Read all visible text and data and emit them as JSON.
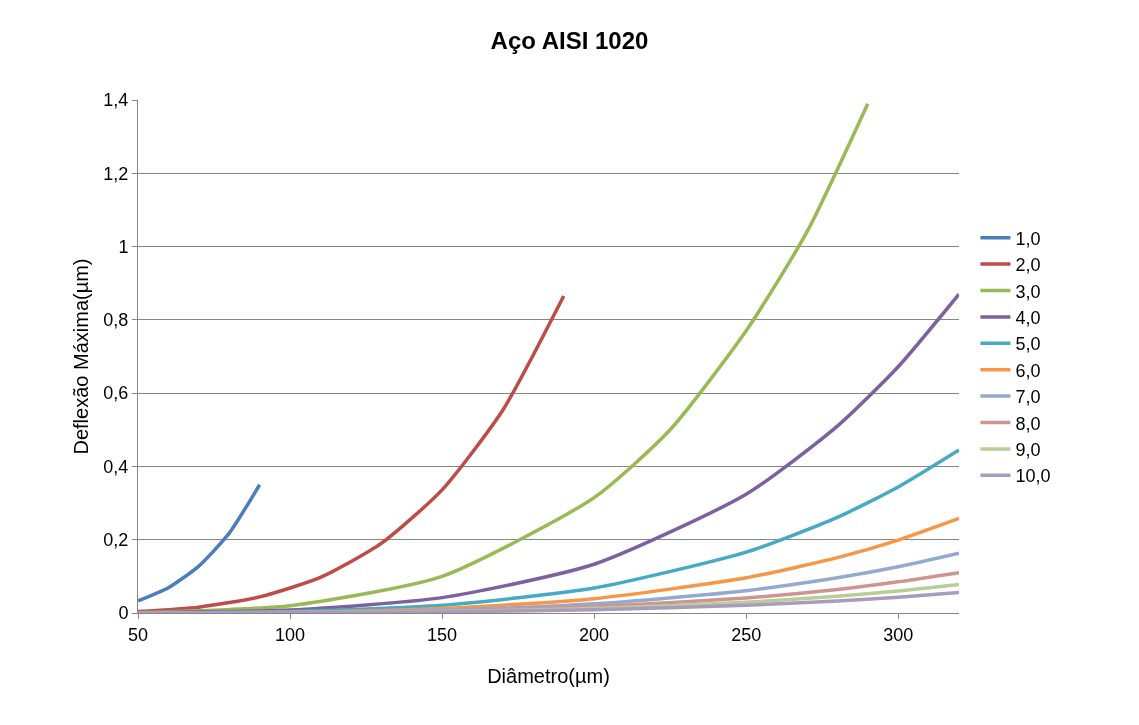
{
  "chart_data": {
    "type": "line",
    "title": "Aço AISI 1020",
    "xlabel": "Diâmetro(µm)",
    "ylabel": "Deflexão Máxima(µm)",
    "xlim": [
      50,
      320
    ],
    "xticks": [
      50,
      100,
      150,
      200,
      250,
      300
    ],
    "ylim": [
      0,
      1.4
    ],
    "yticks": [
      0,
      {
        "value": 0.2,
        "label": "0,2"
      },
      {
        "value": 0.4,
        "label": "0,4"
      },
      {
        "value": 0.6,
        "label": "0,6"
      },
      {
        "value": 0.8,
        "label": "0,8"
      },
      1,
      {
        "value": 1.2,
        "label": "1,2"
      },
      {
        "value": 1.4,
        "label": "1,4"
      }
    ],
    "grid": "y",
    "legend": "right",
    "marker": "none",
    "line_style": "solid",
    "series": [
      {
        "name": "1,0",
        "color": "#4a7ebb",
        "x": [
          50,
          60,
          70,
          80,
          90
        ],
        "values": [
          0.033,
          0.069,
          0.128,
          0.218,
          0.35
        ]
      },
      {
        "name": "2,0",
        "color": "#be4b48",
        "x": [
          50,
          70,
          90,
          110,
          130,
          150,
          170,
          190
        ],
        "values": [
          0.004,
          0.016,
          0.044,
          0.097,
          0.19,
          0.336,
          0.554,
          0.865
        ]
      },
      {
        "name": "3,0",
        "color": "#98b954",
        "x": [
          50,
          100,
          150,
          200,
          225,
          250,
          270,
          290
        ],
        "values": [
          0.001,
          0.02,
          0.1,
          0.315,
          0.5,
          0.77,
          1.04,
          1.39
        ]
      },
      {
        "name": "4,0",
        "color": "#7d60a0",
        "x": [
          50,
          100,
          150,
          200,
          250,
          280,
          300,
          320
        ],
        "values": [
          0.001,
          0.008,
          0.042,
          0.133,
          0.324,
          0.51,
          0.672,
          0.87
        ]
      },
      {
        "name": "5,0",
        "color": "#46aac5",
        "x": [
          50,
          100,
          150,
          200,
          250,
          280,
          300,
          320
        ],
        "values": [
          0,
          0.004,
          0.021,
          0.068,
          0.166,
          0.261,
          0.344,
          0.445
        ]
      },
      {
        "name": "6,0",
        "color": "#f79646",
        "x": [
          50,
          100,
          150,
          200,
          250,
          280,
          300,
          320
        ],
        "values": [
          0,
          0.002,
          0.012,
          0.039,
          0.096,
          0.151,
          0.199,
          0.258
        ]
      },
      {
        "name": "7,0",
        "color": "#93a9cf",
        "x": [
          50,
          100,
          150,
          200,
          250,
          280,
          300,
          320
        ],
        "values": [
          0,
          0.002,
          0.008,
          0.025,
          0.061,
          0.096,
          0.126,
          0.163
        ]
      },
      {
        "name": "8,0",
        "color": "#d19392",
        "x": [
          50,
          100,
          150,
          200,
          250,
          280,
          300,
          320
        ],
        "values": [
          0,
          0.001,
          0.005,
          0.017,
          0.041,
          0.064,
          0.085,
          0.11
        ]
      },
      {
        "name": "9,0",
        "color": "#b9cd96",
        "x": [
          50,
          100,
          150,
          200,
          250,
          280,
          300,
          320
        ],
        "values": [
          0,
          0.001,
          0.004,
          0.012,
          0.029,
          0.046,
          0.06,
          0.078
        ]
      },
      {
        "name": "10,0",
        "color": "#a99bbd",
        "x": [
          50,
          100,
          150,
          200,
          250,
          280,
          300,
          320
        ],
        "values": [
          0,
          0.001,
          0.003,
          0.009,
          0.021,
          0.033,
          0.043,
          0.056
        ]
      }
    ]
  }
}
